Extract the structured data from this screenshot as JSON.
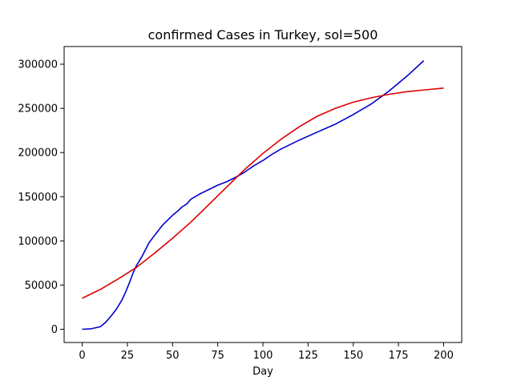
{
  "chart_data": {
    "type": "line",
    "title": "confirmed Cases in Turkey, sol=500",
    "xlabel": "Day",
    "ylabel": "",
    "xlim": [
      -10,
      210
    ],
    "ylim": [
      -15000,
      320000
    ],
    "xticks": [
      0,
      25,
      50,
      75,
      100,
      125,
      150,
      175,
      200
    ],
    "yticks": [
      0,
      50000,
      100000,
      150000,
      200000,
      250000,
      300000
    ],
    "grid": false,
    "series": [
      {
        "color": "#0000cc",
        "x": [
          0,
          5,
          10,
          13,
          16,
          19,
          22,
          24,
          26,
          28,
          30,
          33,
          35,
          37,
          40,
          43,
          45,
          48,
          50,
          53,
          55,
          58,
          60,
          65,
          70,
          75,
          80,
          85,
          90,
          95,
          100,
          105,
          110,
          120,
          130,
          140,
          150,
          160,
          170,
          180,
          189
        ],
        "y": [
          0,
          500,
          2800,
          8000,
          15000,
          23000,
          33000,
          42000,
          52000,
          63000,
          72000,
          82000,
          90000,
          98000,
          106000,
          114000,
          119000,
          125000,
          129000,
          134000,
          138000,
          142000,
          147000,
          153000,
          158000,
          163000,
          167000,
          172000,
          178000,
          185000,
          191000,
          198000,
          204000,
          214000,
          223000,
          232000,
          243000,
          255000,
          270000,
          287000,
          304000
        ]
      },
      {
        "color": "#dd0000",
        "x": [
          0,
          10,
          20,
          30,
          40,
          50,
          60,
          70,
          80,
          90,
          100,
          110,
          120,
          130,
          140,
          150,
          160,
          170,
          180,
          190,
          200
        ],
        "y": [
          35000,
          45000,
          57000,
          70000,
          86000,
          103000,
          121000,
          141000,
          161000,
          181000,
          199000,
          215000,
          229000,
          241000,
          250000,
          257000,
          262000,
          266000,
          269000,
          271000,
          273000
        ]
      }
    ]
  }
}
